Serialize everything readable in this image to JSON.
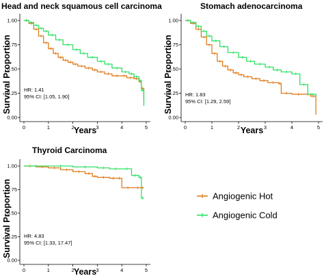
{
  "colors": {
    "hot": "#E07B1A",
    "cold": "#2EE065"
  },
  "legend": [
    {
      "name": "Angiogenic Hot",
      "color": "#E07B1A"
    },
    {
      "name": "Angiogenic Cold",
      "color": "#2EE065"
    }
  ],
  "chart_data": [
    {
      "type": "line",
      "title": "Head and neck squamous cell carcinoma",
      "xlabel": "Years",
      "ylabel": "Survival Proportion",
      "xlim": [
        0,
        5
      ],
      "ylim": [
        0,
        1
      ],
      "xticks": [
        "0",
        "1",
        "2",
        "3",
        "4",
        "5"
      ],
      "yticks": [
        "0.00",
        "0.25",
        "0.50",
        "0.75",
        "1.00"
      ],
      "stats": {
        "hr": "HR: 1.41",
        "ci": "95% CI: [1.05, 1.90]"
      },
      "series": [
        {
          "name": "Angiogenic Hot",
          "x": [
            0,
            0.2,
            0.4,
            0.6,
            0.8,
            1.0,
            1.2,
            1.4,
            1.6,
            1.8,
            2.0,
            2.2,
            2.5,
            2.8,
            3.0,
            3.3,
            3.6,
            4.0,
            4.2,
            4.5,
            4.7,
            4.8,
            4.9
          ],
          "y": [
            1.0,
            0.97,
            0.91,
            0.84,
            0.77,
            0.71,
            0.66,
            0.62,
            0.59,
            0.57,
            0.55,
            0.53,
            0.51,
            0.49,
            0.47,
            0.45,
            0.43,
            0.43,
            0.41,
            0.4,
            0.37,
            0.3,
            0.17
          ]
        },
        {
          "name": "Angiogenic Cold",
          "x": [
            0,
            0.2,
            0.4,
            0.6,
            0.8,
            1.0,
            1.3,
            1.6,
            2.0,
            2.3,
            2.6,
            3.0,
            3.3,
            3.6,
            4.0,
            4.3,
            4.5,
            4.7,
            4.8,
            4.9
          ],
          "y": [
            1.0,
            0.98,
            0.95,
            0.92,
            0.89,
            0.85,
            0.8,
            0.75,
            0.7,
            0.66,
            0.62,
            0.58,
            0.55,
            0.51,
            0.47,
            0.45,
            0.42,
            0.38,
            0.28,
            0.12
          ]
        }
      ]
    },
    {
      "type": "line",
      "title": "Stomach adenocarcinoma",
      "xlabel": "Years",
      "ylabel": "Survival Proportion",
      "xlim": [
        0,
        5
      ],
      "ylim": [
        0,
        1
      ],
      "xticks": [
        "0",
        "1",
        "2",
        "3",
        "4",
        "5"
      ],
      "yticks": [
        "0.00",
        "0.25",
        "0.50",
        "0.75",
        "1.00"
      ],
      "stats": {
        "hr": "HR: 1.83",
        "ci": "95% CI: [1.29, 2.59]"
      },
      "series": [
        {
          "name": "Angiogenic Hot",
          "x": [
            0,
            0.2,
            0.4,
            0.6,
            0.8,
            1.0,
            1.2,
            1.4,
            1.6,
            1.8,
            2.0,
            2.2,
            2.5,
            2.8,
            3.1,
            3.5,
            3.6,
            4.0,
            4.5,
            4.7,
            4.9
          ],
          "y": [
            1.0,
            0.97,
            0.91,
            0.83,
            0.75,
            0.66,
            0.58,
            0.53,
            0.49,
            0.46,
            0.44,
            0.42,
            0.4,
            0.38,
            0.36,
            0.35,
            0.25,
            0.24,
            0.24,
            0.22,
            0.03
          ]
        },
        {
          "name": "Angiogenic Cold",
          "x": [
            0,
            0.2,
            0.4,
            0.6,
            0.8,
            1.0,
            1.3,
            1.6,
            2.0,
            2.3,
            2.6,
            3.0,
            3.3,
            3.6,
            4.0,
            4.3,
            4.6,
            4.9
          ],
          "y": [
            1.0,
            0.98,
            0.94,
            0.89,
            0.84,
            0.79,
            0.73,
            0.67,
            0.62,
            0.58,
            0.55,
            0.52,
            0.49,
            0.47,
            0.45,
            0.34,
            0.24,
            0.22
          ]
        }
      ]
    },
    {
      "type": "line",
      "title": "Thyroid Carcinoma",
      "xlabel": "Years",
      "ylabel": "Survival Proportion",
      "xlim": [
        0,
        5
      ],
      "ylim": [
        0,
        1
      ],
      "xticks": [
        "0",
        "1",
        "2",
        "3",
        "4",
        "5"
      ],
      "yticks": [
        "0.00",
        "0.25",
        "0.50",
        "0.75",
        "1.00"
      ],
      "stats": {
        "hr": "HR: 4.83",
        "ci": "95% CI: [1.33, 17.47]"
      },
      "series": [
        {
          "name": "Angiogenic Hot",
          "x": [
            0,
            0.5,
            1.0,
            1.5,
            2.0,
            2.5,
            2.8,
            3.0,
            3.5,
            3.8,
            4.0,
            4.5,
            4.8,
            4.9
          ],
          "y": [
            1.0,
            0.99,
            0.98,
            0.96,
            0.94,
            0.92,
            0.89,
            0.88,
            0.87,
            0.87,
            0.77,
            0.77,
            0.77,
            0.77
          ]
        },
        {
          "name": "Angiogenic Cold",
          "x": [
            0,
            1.0,
            2.0,
            3.0,
            3.5,
            4.0,
            4.4,
            4.7,
            4.8,
            4.9
          ],
          "y": [
            1.0,
            1.0,
            0.99,
            0.98,
            0.97,
            0.97,
            0.9,
            0.88,
            0.66,
            0.66
          ]
        }
      ]
    }
  ]
}
